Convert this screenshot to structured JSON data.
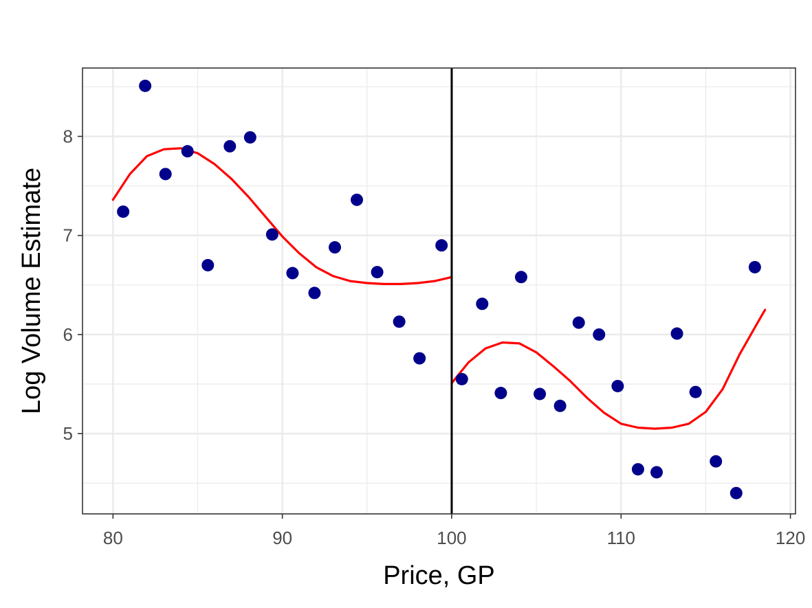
{
  "chart_data": {
    "type": "scatter",
    "title": "",
    "xlabel": "Price, GP",
    "ylabel": "Log Volume Estimate",
    "xlim": [
      78.2,
      120.3
    ],
    "ylim": [
      4.19,
      8.69
    ],
    "x_ticks": [
      80,
      90,
      100,
      110,
      120
    ],
    "y_ticks": [
      5,
      6,
      7,
      8
    ],
    "grid": true,
    "legend": "none",
    "cutoff_x": 100,
    "colors": {
      "points": "#00008b",
      "fit": "#ff0000",
      "cutoff": "#000000",
      "grid": "#ebebeb",
      "panel_border": "#333333"
    },
    "points": [
      {
        "x": 80.6,
        "y": 7.24
      },
      {
        "x": 81.9,
        "y": 8.51
      },
      {
        "x": 83.1,
        "y": 7.62
      },
      {
        "x": 84.4,
        "y": 7.85
      },
      {
        "x": 85.6,
        "y": 6.7
      },
      {
        "x": 86.9,
        "y": 7.9
      },
      {
        "x": 88.1,
        "y": 7.99
      },
      {
        "x": 89.4,
        "y": 7.01
      },
      {
        "x": 90.6,
        "y": 6.62
      },
      {
        "x": 91.9,
        "y": 6.42
      },
      {
        "x": 93.1,
        "y": 6.88
      },
      {
        "x": 94.4,
        "y": 7.36
      },
      {
        "x": 95.6,
        "y": 6.63
      },
      {
        "x": 96.9,
        "y": 6.13
      },
      {
        "x": 98.1,
        "y": 5.76
      },
      {
        "x": 99.4,
        "y": 6.9
      },
      {
        "x": 100.6,
        "y": 5.55
      },
      {
        "x": 101.8,
        "y": 6.31
      },
      {
        "x": 102.9,
        "y": 5.41
      },
      {
        "x": 104.1,
        "y": 6.58
      },
      {
        "x": 105.2,
        "y": 5.4
      },
      {
        "x": 106.4,
        "y": 5.28
      },
      {
        "x": 107.5,
        "y": 6.12
      },
      {
        "x": 108.7,
        "y": 6.0
      },
      {
        "x": 109.8,
        "y": 5.48
      },
      {
        "x": 111.0,
        "y": 4.64
      },
      {
        "x": 112.1,
        "y": 4.61
      },
      {
        "x": 113.3,
        "y": 6.01
      },
      {
        "x": 114.4,
        "y": 5.42
      },
      {
        "x": 115.6,
        "y": 4.72
      },
      {
        "x": 116.8,
        "y": 4.4
      },
      {
        "x": 117.9,
        "y": 6.68
      }
    ],
    "series": [
      {
        "type": "line",
        "x": [
          80.0,
          81.0,
          82.0,
          83.0,
          84.0,
          85.0,
          86.0,
          87.0,
          88.0,
          89.0,
          90.0,
          91.0,
          92.0,
          93.0,
          94.0,
          95.0,
          96.0,
          97.0,
          98.0,
          99.0,
          100.0
        ],
        "values": [
          7.36,
          7.62,
          7.8,
          7.87,
          7.88,
          7.83,
          7.72,
          7.57,
          7.39,
          7.19,
          6.99,
          6.82,
          6.68,
          6.59,
          6.54,
          6.52,
          6.51,
          6.51,
          6.52,
          6.54,
          6.58
        ]
      },
      {
        "type": "line",
        "x": [
          100.0,
          101.0,
          102.0,
          103.0,
          104.0,
          105.0,
          106.0,
          107.0,
          108.0,
          109.0,
          110.0,
          111.0,
          112.0,
          113.0,
          114.0,
          115.0,
          116.0,
          117.0,
          118.0,
          118.5
        ],
        "values": [
          5.51,
          5.72,
          5.86,
          5.92,
          5.91,
          5.82,
          5.68,
          5.53,
          5.36,
          5.21,
          5.1,
          5.06,
          5.05,
          5.06,
          5.1,
          5.22,
          5.45,
          5.8,
          6.1,
          6.25
        ]
      }
    ]
  }
}
